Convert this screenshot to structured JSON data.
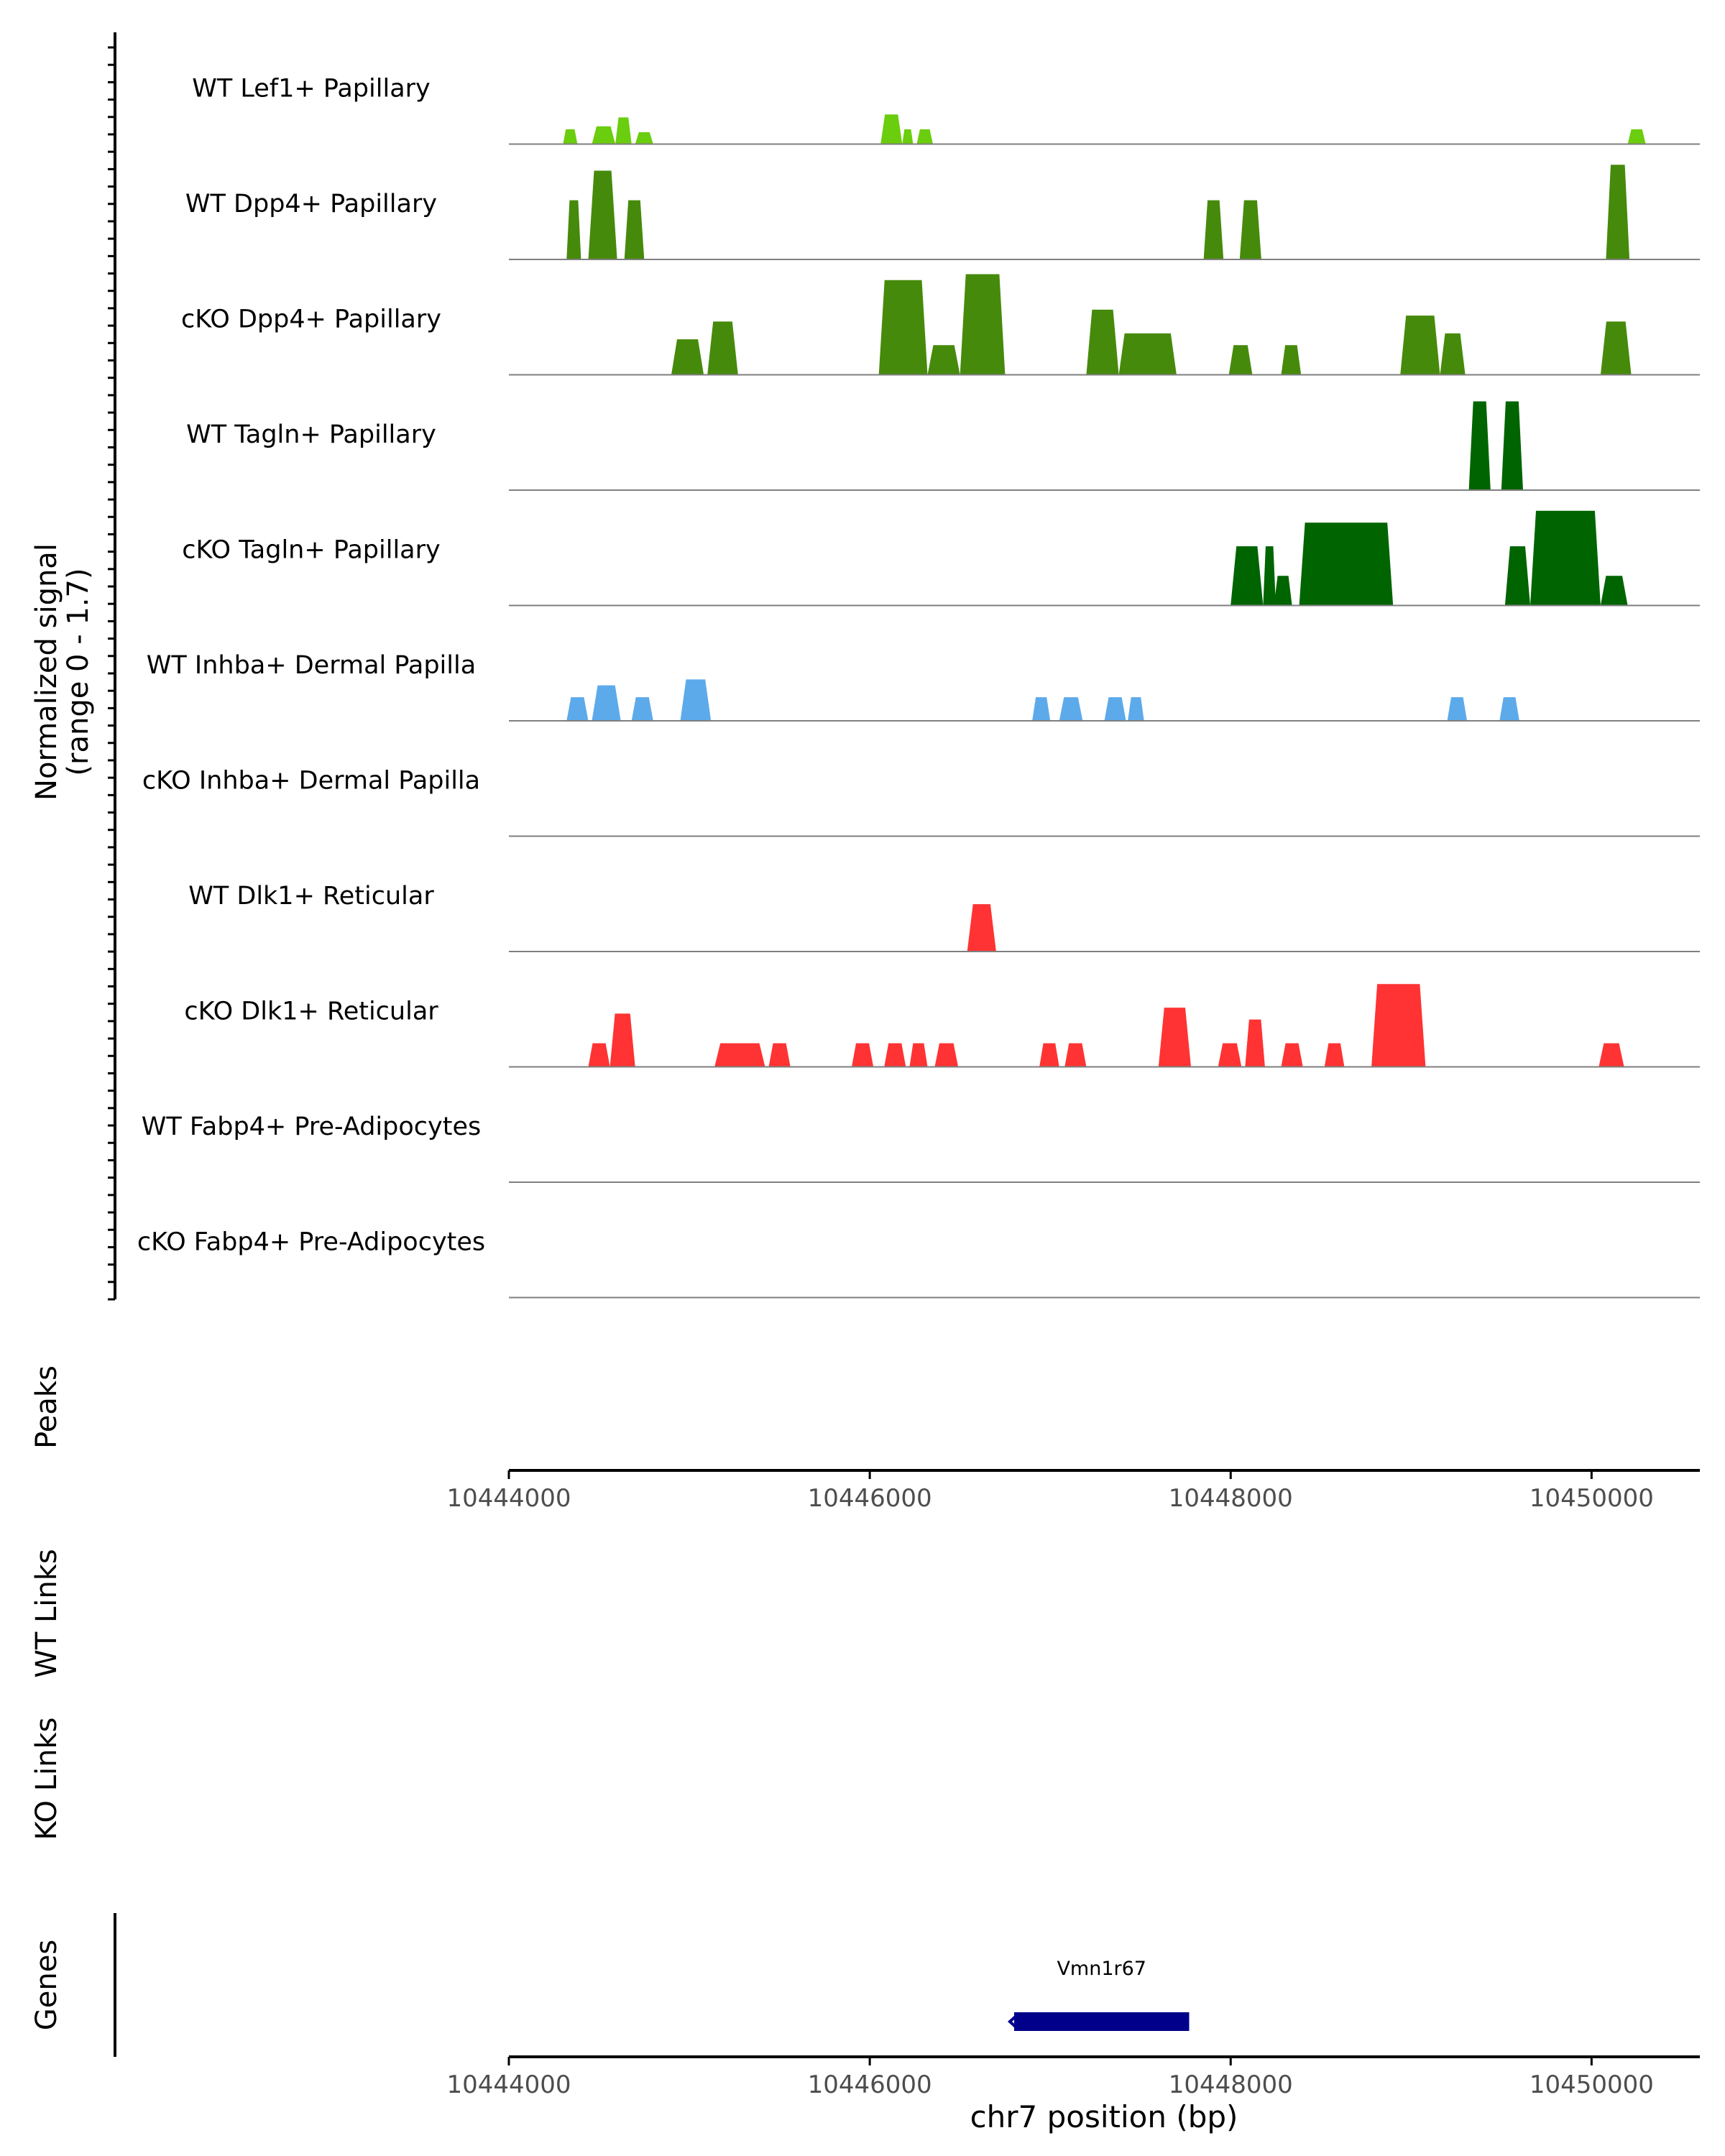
{
  "chart_data": {
    "type": "area",
    "xlabel": "chr7 position (bp)",
    "xlim": [
      10444000,
      10450600
    ],
    "x_ticks": [
      "10444000",
      "10446000",
      "10448000",
      "10450000"
    ],
    "y_axis_label_line1": "Normalized signal",
    "y_axis_label_line2": "(range 0 - 1.7)",
    "ylim": [
      0,
      1.7
    ],
    "section_labels": {
      "peaks": "Peaks",
      "wt_links": "WT Links",
      "ko_links": "KO Links",
      "genes": "Genes"
    },
    "tracks": [
      {
        "name": "WT Lef1+ Papillary",
        "color": "#6ACD0D",
        "segments": [
          [
            10444300,
            10444380,
            0.25
          ],
          [
            10444460,
            10444590,
            0.3
          ],
          [
            10444590,
            10444680,
            0.45
          ],
          [
            10444700,
            10444800,
            0.2
          ],
          [
            10446060,
            10446180,
            0.5
          ],
          [
            10446180,
            10446240,
            0.25
          ],
          [
            10446260,
            10446350,
            0.25
          ],
          [
            10450200,
            10450300,
            0.25
          ]
        ]
      },
      {
        "name": "WT Dpp4+ Papillary",
        "color": "#468A0B",
        "segments": [
          [
            10444320,
            10444400,
            1.0
          ],
          [
            10444440,
            10444600,
            1.5
          ],
          [
            10444640,
            10444750,
            1.0
          ],
          [
            10447850,
            10447960,
            1.0
          ],
          [
            10448050,
            10448170,
            1.0
          ],
          [
            10450080,
            10450210,
            1.6
          ]
        ]
      },
      {
        "name": "cKO Dpp4+ Papillary",
        "color": "#468A0B",
        "segments": [
          [
            10444900,
            10445080,
            0.6
          ],
          [
            10445100,
            10445270,
            0.9
          ],
          [
            10446050,
            10446320,
            1.6
          ],
          [
            10446320,
            10446500,
            0.5
          ],
          [
            10446500,
            10446750,
            1.7
          ],
          [
            10447200,
            10447380,
            1.1
          ],
          [
            10447380,
            10447700,
            0.7
          ],
          [
            10447990,
            10448120,
            0.5
          ],
          [
            10448280,
            10448390,
            0.5
          ],
          [
            10448940,
            10449160,
            1.0
          ],
          [
            10449160,
            10449300,
            0.7
          ],
          [
            10450050,
            10450220,
            0.9
          ]
        ]
      },
      {
        "name": "WT Tagln+ Papillary",
        "color": "#006400",
        "segments": [
          [
            10449320,
            10449440,
            1.5
          ],
          [
            10449500,
            10449620,
            1.5
          ]
        ]
      },
      {
        "name": "cKO Tagln+ Papillary",
        "color": "#006400",
        "segments": [
          [
            10448000,
            10448180,
            1.0
          ],
          [
            10448180,
            10448250,
            1.0
          ],
          [
            10448240,
            10448340,
            0.5
          ],
          [
            10448380,
            10448900,
            1.4
          ],
          [
            10449520,
            10449660,
            1.0
          ],
          [
            10449660,
            10450050,
            1.6
          ],
          [
            10450050,
            10450200,
            0.5
          ]
        ]
      },
      {
        "name": "WT Inhba+ Dermal Papilla",
        "color": "#5DAAEB",
        "segments": [
          [
            10444320,
            10444440,
            0.4
          ],
          [
            10444460,
            10444620,
            0.6
          ],
          [
            10444680,
            10444800,
            0.4
          ],
          [
            10444950,
            10445120,
            0.7
          ],
          [
            10446900,
            10447000,
            0.4
          ],
          [
            10447050,
            10447180,
            0.4
          ],
          [
            10447300,
            10447420,
            0.4
          ],
          [
            10447430,
            10447520,
            0.4
          ],
          [
            10449200,
            10449310,
            0.4
          ],
          [
            10449490,
            10449600,
            0.4
          ]
        ]
      },
      {
        "name": "cKO Inhba+ Dermal Papilla",
        "color": "#5DAAEB",
        "segments": []
      },
      {
        "name": "WT Dlk1+ Reticular",
        "color": "#FF3333",
        "segments": [
          [
            10446540,
            10446700,
            0.8
          ]
        ]
      },
      {
        "name": "cKO Dlk1+ Reticular",
        "color": "#FF3333",
        "segments": [
          [
            10444440,
            10444560,
            0.4
          ],
          [
            10444560,
            10444700,
            0.9
          ],
          [
            10445140,
            10445420,
            0.4
          ],
          [
            10445440,
            10445560,
            0.4
          ],
          [
            10445900,
            10446020,
            0.4
          ],
          [
            10446080,
            10446200,
            0.4
          ],
          [
            10446220,
            10446320,
            0.4
          ],
          [
            10446360,
            10446490,
            0.4
          ],
          [
            10446940,
            10447050,
            0.4
          ],
          [
            10447080,
            10447200,
            0.4
          ],
          [
            10447600,
            10447780,
            1.0
          ],
          [
            10447930,
            10448060,
            0.4
          ],
          [
            10448080,
            10448190,
            0.8
          ],
          [
            10448280,
            10448400,
            0.4
          ],
          [
            10448520,
            10448630,
            0.4
          ],
          [
            10448780,
            10449080,
            1.4
          ],
          [
            10450040,
            10450180,
            0.4
          ]
        ]
      },
      {
        "name": "WT Fabp4+ Pre-Adipocytes",
        "color": "#FF3333",
        "segments": []
      },
      {
        "name": "cKO Fabp4+ Pre-Adipocytes",
        "color": "#FF3333",
        "segments": []
      }
    ],
    "gene": {
      "name": "Vmn1r67",
      "start": 10446800,
      "end": 10447770,
      "strand": "-",
      "color": "#00008B"
    }
  }
}
